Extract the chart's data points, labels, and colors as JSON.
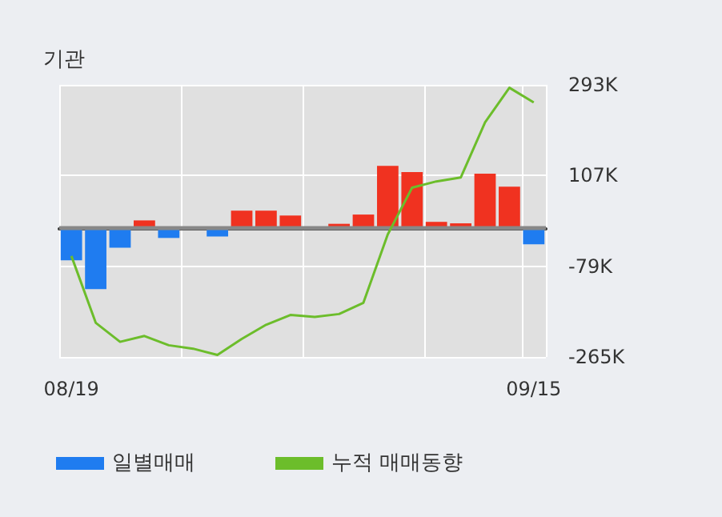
{
  "chart_data": {
    "type": "bar",
    "title": "기관",
    "categories": [
      "08/19",
      null,
      null,
      null,
      null,
      null,
      null,
      null,
      null,
      null,
      null,
      null,
      null,
      null,
      null,
      null,
      null,
      null,
      null,
      "09/15"
    ],
    "series": [
      {
        "name": "일별매매",
        "values": [
          -67000,
          -126000,
          -41000,
          15000,
          -21000,
          0,
          -18000,
          35000,
          35000,
          25000,
          0,
          8000,
          27000,
          127000,
          114000,
          12000,
          9000,
          111000,
          84000,
          -34000
        ],
        "colors": [
          "#1f7cf0",
          "#1f7cf0",
          "#1f7cf0",
          "#f03220",
          "#1f7cf0",
          "#f03220",
          "#1f7cf0",
          "#f03220",
          "#f03220",
          "#f03220",
          "#f03220",
          "#f03220",
          "#f03220",
          "#f03220",
          "#f03220",
          "#f03220",
          "#f03220",
          "#f03220",
          "#f03220",
          "#1f7cf0"
        ]
      },
      {
        "name": "누적 매매동향",
        "type": "line",
        "color": "#6cbd2b",
        "values": [
          -58000,
          -195000,
          -234000,
          -222000,
          -241000,
          -248000,
          -261000,
          -228000,
          -199000,
          -179000,
          -183000,
          -177000,
          -154000,
          -14000,
          82000,
          95000,
          103000,
          216000,
          287000,
          257000
        ]
      }
    ],
    "ylim": [
      -265000,
      293000
    ],
    "yticks": [
      {
        "value": -265000,
        "label": "-265K"
      },
      {
        "value": -79000,
        "label": "-79K"
      },
      {
        "value": 107000,
        "label": "107K"
      },
      {
        "value": 293000,
        "label": "293K"
      }
    ],
    "ref_lines": [
      {
        "axis": "y",
        "value": 0,
        "color": "#888888"
      }
    ],
    "grid": true,
    "legend": "bottom",
    "marker": "none"
  }
}
